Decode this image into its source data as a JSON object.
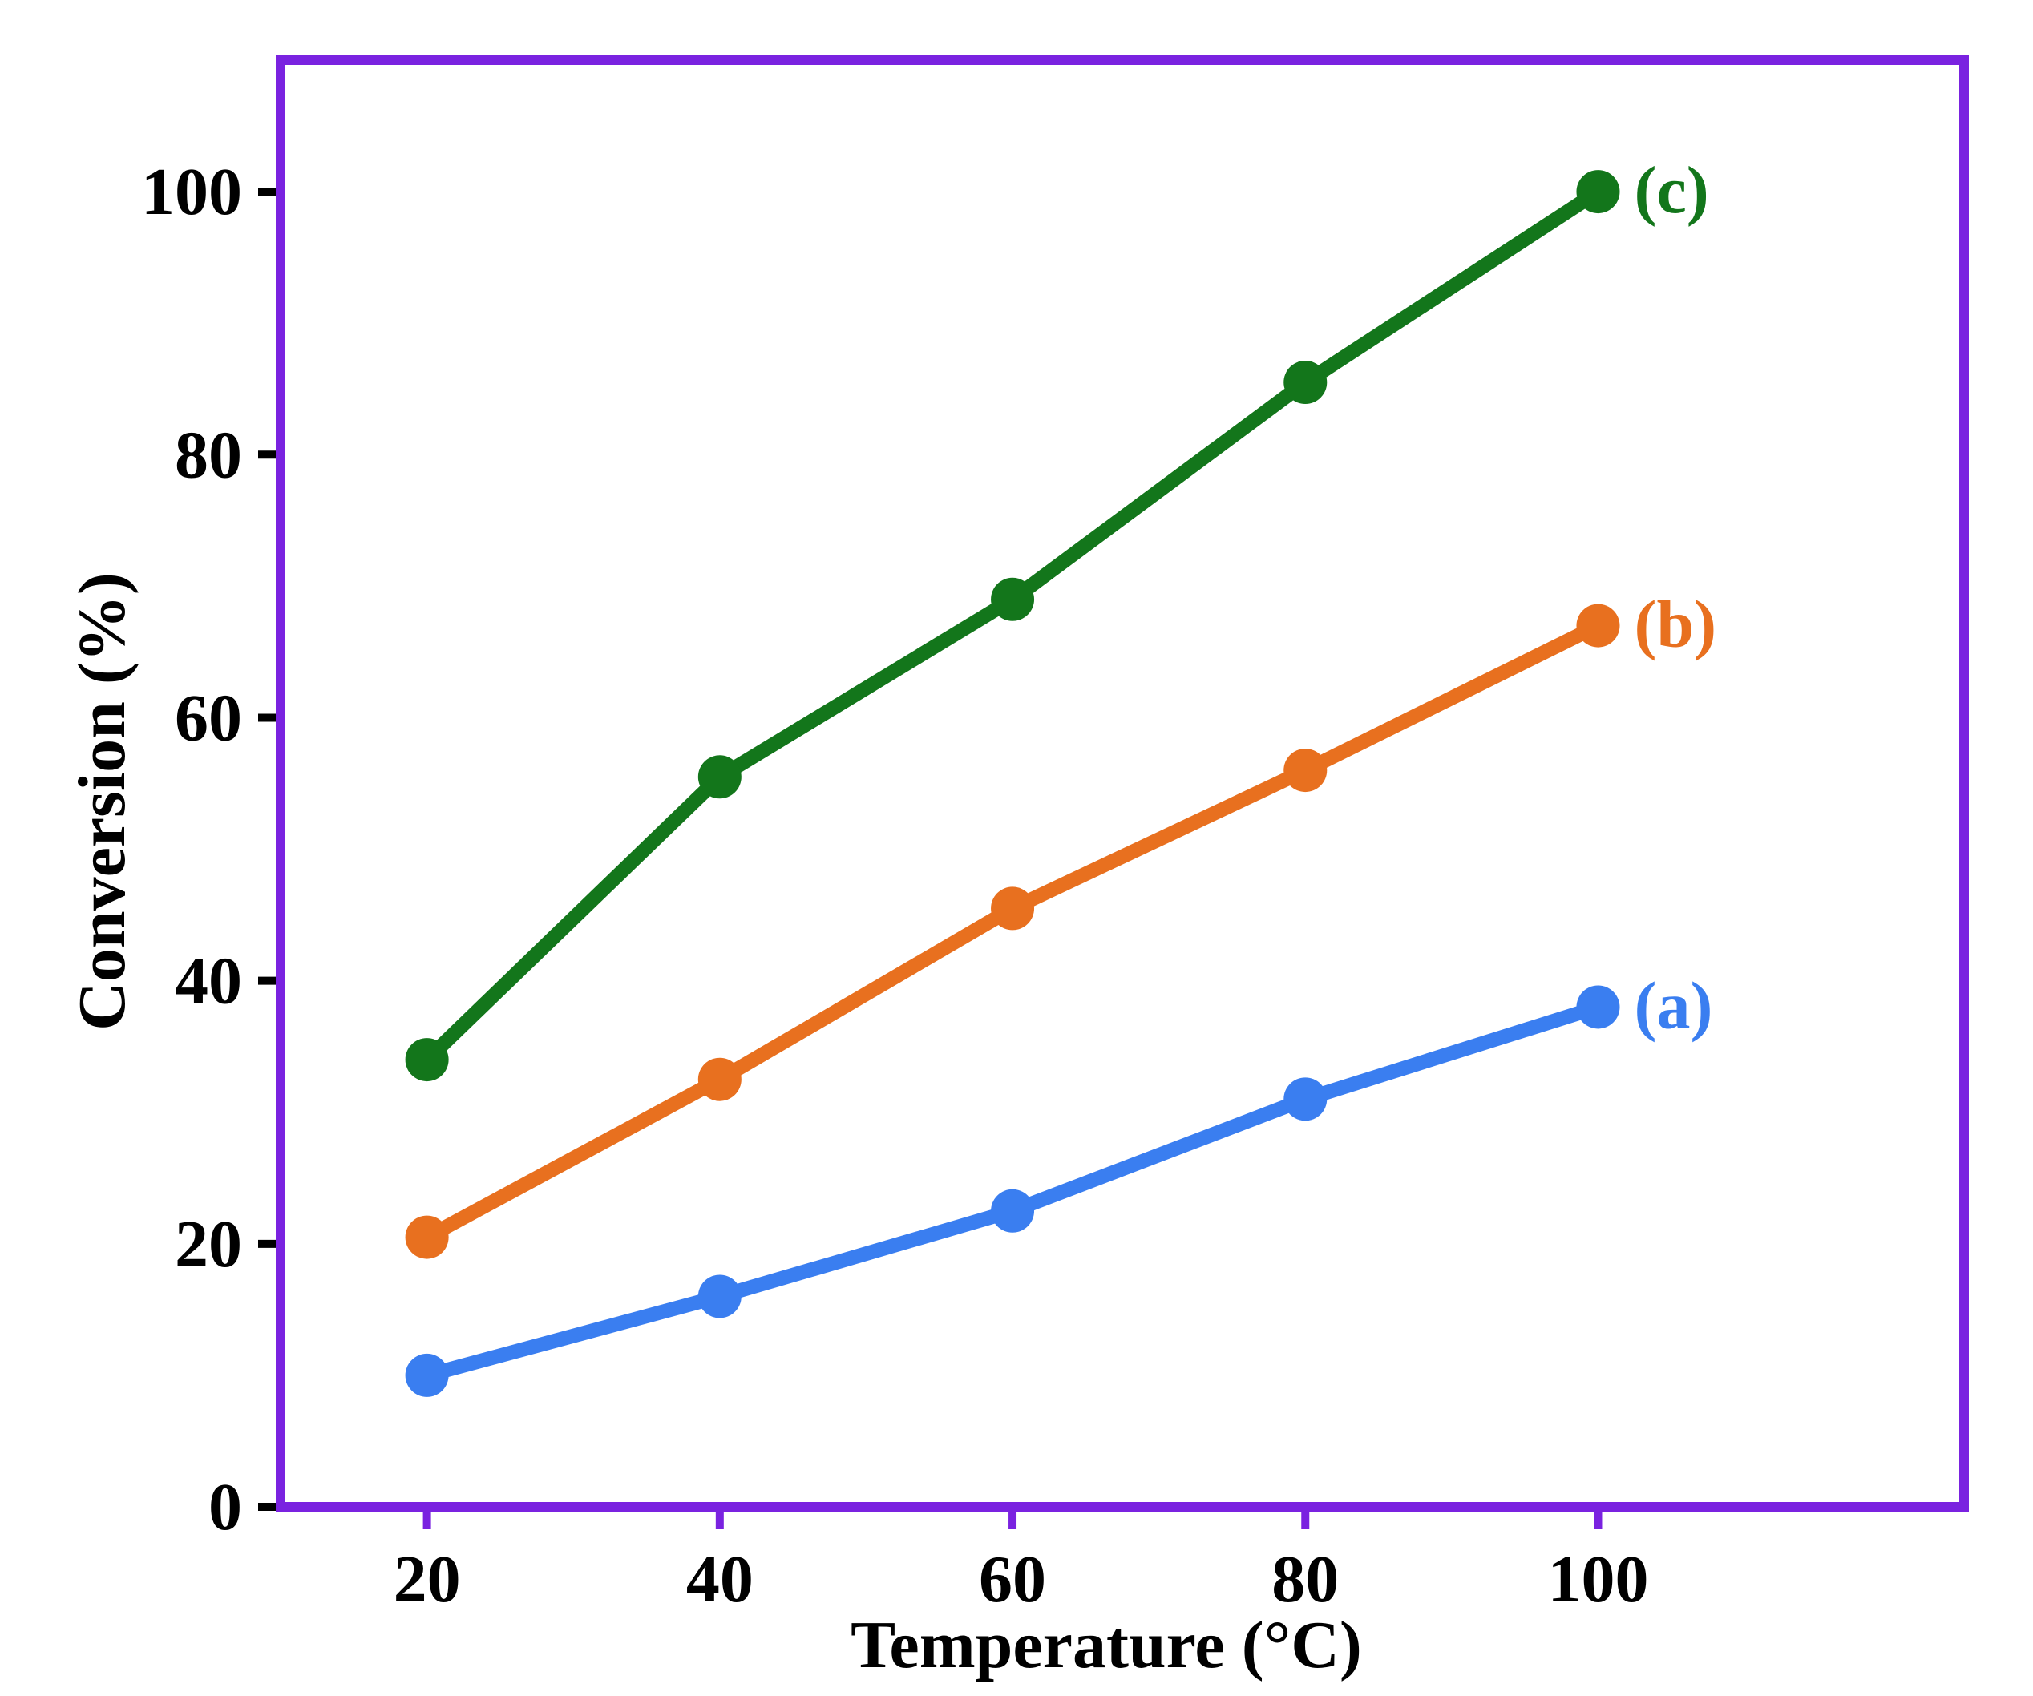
{
  "chart_data": {
    "type": "line",
    "title": "",
    "xlabel": "Temperature (°C)",
    "ylabel": "Conversion (%)",
    "x": [
      20,
      40,
      60,
      80,
      100
    ],
    "x_ticks": [
      "20",
      "40",
      "60",
      "80",
      "100"
    ],
    "y_ticks": [
      "0",
      "20",
      "40",
      "60",
      "80",
      "100"
    ],
    "xlim": [
      10,
      125
    ],
    "ylim": [
      0,
      110
    ],
    "grid": false,
    "frame_color": "#7a22e0",
    "series": [
      {
        "name": "(a)",
        "color": "#3a7ef0",
        "values": [
          10,
          16,
          22.5,
          31,
          38
        ]
      },
      {
        "name": "(b)",
        "color": "#e8701f",
        "values": [
          20.5,
          32.5,
          45.5,
          56,
          67
        ]
      },
      {
        "name": "(c)",
        "color": "#13761b",
        "values": [
          34,
          55.5,
          69,
          85.5,
          100
        ]
      }
    ]
  }
}
